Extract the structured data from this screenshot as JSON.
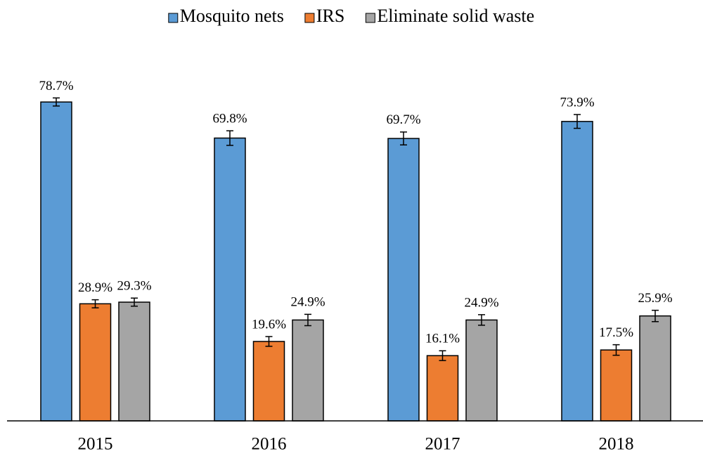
{
  "chart_data": {
    "type": "bar",
    "categories": [
      "2015",
      "2016",
      "2017",
      "2018"
    ],
    "series": [
      {
        "name": "Mosquito nets",
        "color": "#5b9bd5",
        "values": [
          78.7,
          69.8,
          69.7,
          73.9
        ],
        "errors": [
          1.0,
          1.8,
          1.6,
          1.7
        ],
        "value_labels": [
          "78.7%",
          "69.8%",
          "69.7%",
          "73.9%"
        ]
      },
      {
        "name": "IRS",
        "color": "#ed7d31",
        "values": [
          28.9,
          19.6,
          16.1,
          17.5
        ],
        "errors": [
          1.0,
          1.2,
          1.2,
          1.3
        ],
        "value_labels": [
          "28.9%",
          "19.6%",
          "16.1%",
          "17.5%"
        ]
      },
      {
        "name": "Eliminate solid waste",
        "color": "#a5a5a5",
        "values": [
          29.3,
          24.9,
          24.9,
          25.9
        ],
        "errors": [
          1.0,
          1.4,
          1.3,
          1.4
        ],
        "value_labels": [
          "29.3%",
          "24.9%",
          "24.9%",
          "25.9%"
        ]
      }
    ],
    "ylim": [
      0,
      90
    ],
    "legend": "top"
  }
}
